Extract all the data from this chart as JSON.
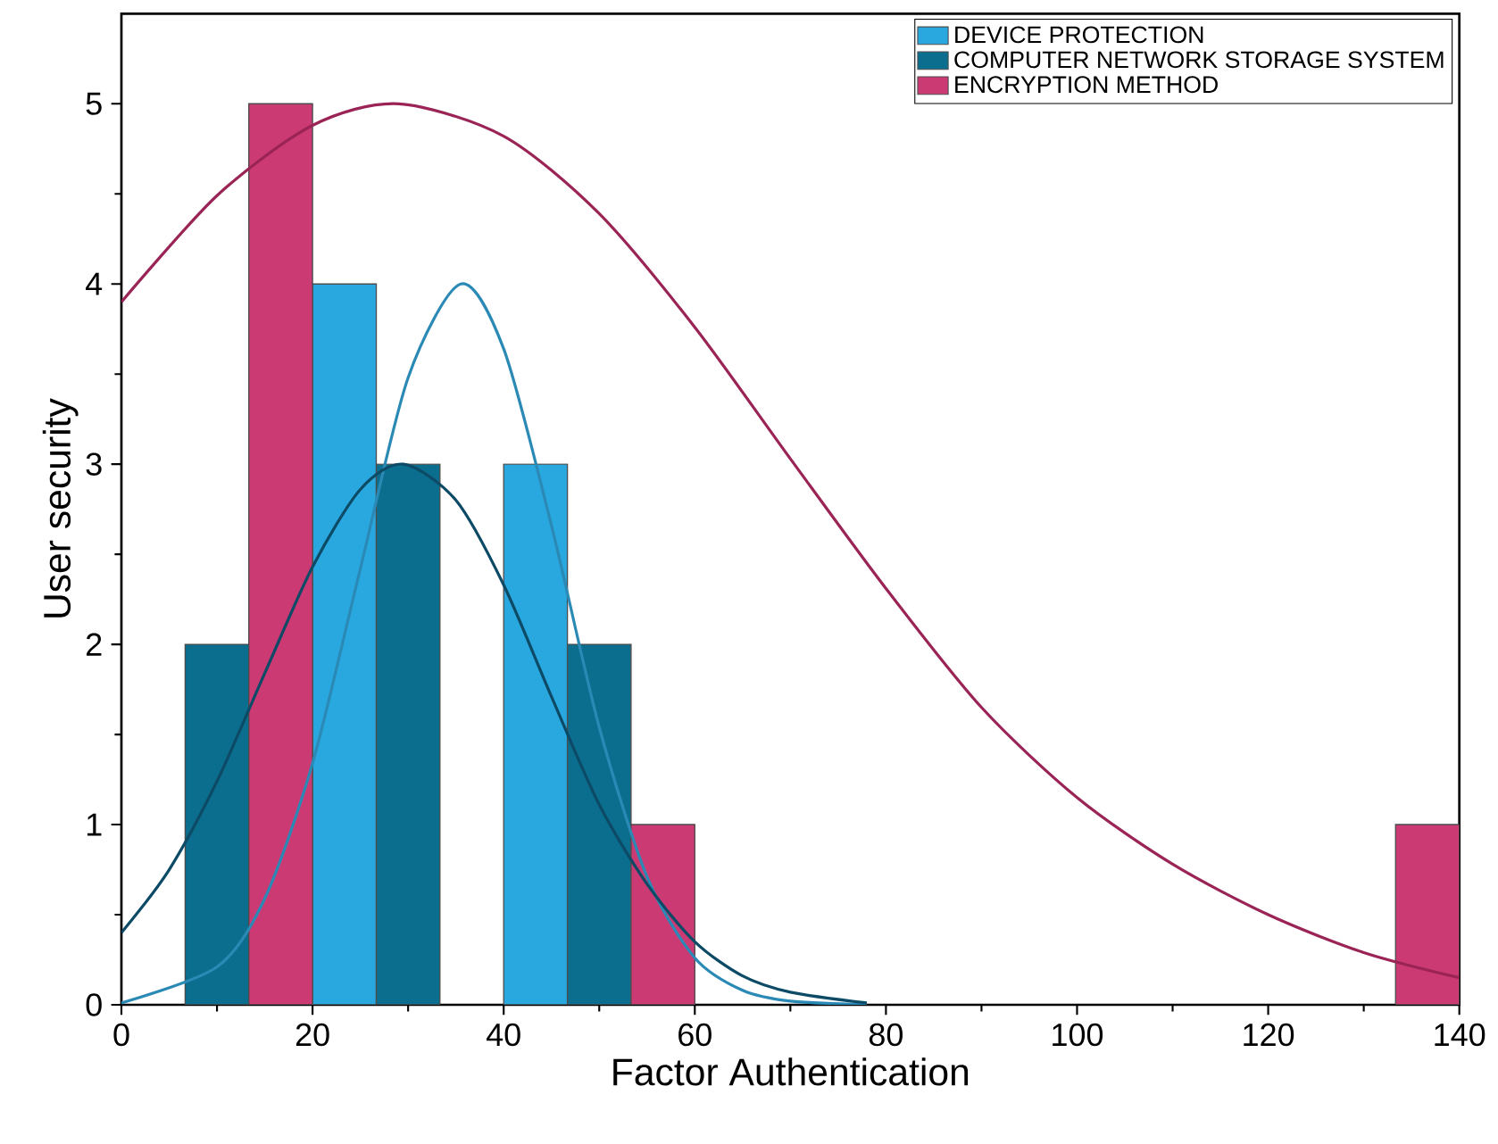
{
  "chart_data": {
    "type": "histogram",
    "xlabel": "Factor Authentication",
    "ylabel": "User security",
    "bins": [
      6.67,
      13.33,
      20,
      26.67,
      33.33,
      40,
      46.67,
      53.33,
      60,
      66.67,
      73.33,
      80,
      86.67,
      93.33,
      100,
      106.67,
      113.33,
      120,
      126.67,
      133.33,
      140
    ],
    "series": [
      {
        "name": "DEVICE PROTECTION",
        "color": "#29a8e0",
        "values": [
          0,
          0,
          4,
          0,
          0,
          3,
          0,
          0,
          0,
          0,
          0,
          0,
          0,
          0,
          0,
          0,
          0,
          0,
          0,
          0
        ]
      },
      {
        "name": "COMPUTER NETWORK STORAGE SYSTEM",
        "color": "#0b6e8f",
        "values": [
          2,
          0,
          0,
          3,
          0,
          0,
          2,
          0,
          0,
          0,
          0,
          0,
          0,
          0,
          0,
          0,
          0,
          0,
          0,
          0
        ]
      },
      {
        "name": "ENCRYPTION METHOD",
        "color": "#cc3a74",
        "values": [
          0,
          5,
          0,
          0,
          0,
          0,
          0,
          1,
          0,
          0,
          0,
          0,
          0,
          0,
          0,
          0,
          0,
          0,
          0,
          1
        ]
      },
      {
        "type": "line",
        "color": "#2a8ab5",
        "x": [
          0,
          10,
          15,
          20,
          25,
          30,
          35.5,
          40,
          45,
          50,
          55,
          60,
          65,
          70,
          78
        ],
        "values": [
          0.01,
          0.21,
          0.59,
          1.34,
          2.42,
          3.48,
          4,
          3.64,
          2.66,
          1.54,
          0.71,
          0.26,
          0.08,
          0.02,
          0
        ]
      },
      {
        "type": "line",
        "color": "#0c4a66",
        "x": [
          0,
          5,
          10,
          15,
          20,
          25,
          29.5,
          35,
          40,
          45,
          50,
          55,
          60,
          65,
          70,
          78
        ],
        "values": [
          0.4,
          0.75,
          1.24,
          1.84,
          2.43,
          2.86,
          3,
          2.8,
          2.33,
          1.71,
          1.11,
          0.67,
          0.35,
          0.16,
          0.07,
          0.01
        ]
      },
      {
        "type": "line",
        "color": "#9b2456",
        "x": [
          0,
          10,
          20,
          29,
          40,
          50,
          60,
          70,
          80,
          90,
          100,
          110,
          120,
          130,
          140
        ],
        "values": [
          3.9,
          4.49,
          4.88,
          5,
          4.82,
          4.39,
          3.76,
          3.03,
          2.31,
          1.65,
          1.15,
          0.78,
          0.5,
          0.29,
          0.15
        ]
      }
    ],
    "xlim": [
      0,
      140
    ],
    "ylim": [
      0,
      5.5
    ],
    "xticks": [
      0,
      20,
      40,
      60,
      80,
      100,
      120,
      140
    ],
    "yticks": [
      0,
      1,
      2,
      3,
      4,
      5
    ],
    "legend": "top right",
    "grid": false,
    "marker": "none"
  }
}
